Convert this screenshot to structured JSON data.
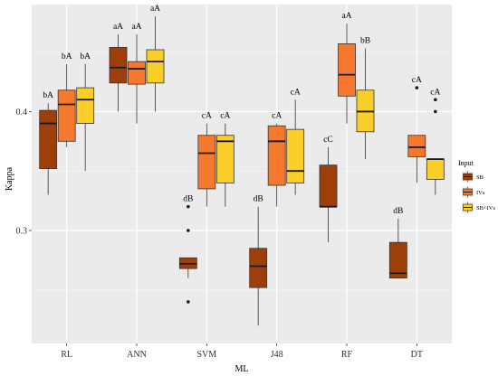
{
  "chart_data": {
    "type": "boxplot",
    "xlabel": "ML",
    "ylabel": "Kappa",
    "ylim": [
      0.205,
      0.49
    ],
    "y_ticks": [
      0.3,
      0.4
    ],
    "y_tick_labels": [
      "0.3",
      "0.4"
    ],
    "grid": true,
    "legend": {
      "title": "Input",
      "position": "right",
      "entries": [
        {
          "name": "SB",
          "color": "#9E3F0A"
        },
        {
          "name": "IVs",
          "color": "#F4792F"
        },
        {
          "name": "SB+IVs",
          "color": "#FBCF2A"
        }
      ]
    },
    "categories": [
      "RL",
      "ANN",
      "SVM",
      "J48",
      "RF",
      "DT"
    ],
    "series": [
      {
        "name": "SB",
        "color": "#9E3F0A",
        "boxes": [
          {
            "min": 0.33,
            "q1": 0.352,
            "median": 0.39,
            "q3": 0.401,
            "max": 0.407,
            "outliers": [],
            "label": "bA"
          },
          {
            "min": 0.4,
            "q1": 0.424,
            "median": 0.437,
            "q3": 0.454,
            "max": 0.465,
            "outliers": [],
            "label": "aA"
          },
          {
            "min": 0.26,
            "q1": 0.268,
            "median": 0.272,
            "q3": 0.277,
            "max": 0.277,
            "outliers": [
              0.32,
              0.3,
              0.24
            ],
            "label": "dB"
          },
          {
            "min": 0.22,
            "q1": 0.252,
            "median": 0.27,
            "q3": 0.285,
            "max": 0.32,
            "outliers": [],
            "label": "dB"
          },
          {
            "min": 0.29,
            "q1": 0.32,
            "median": 0.32,
            "q3": 0.355,
            "max": 0.37,
            "outliers": [],
            "label": "cC"
          },
          {
            "min": 0.26,
            "q1": 0.26,
            "median": 0.264,
            "q3": 0.29,
            "max": 0.31,
            "outliers": [],
            "label": "dB"
          }
        ]
      },
      {
        "name": "IVs",
        "color": "#F4792F",
        "boxes": [
          {
            "min": 0.37,
            "q1": 0.375,
            "median": 0.406,
            "q3": 0.418,
            "max": 0.44,
            "outliers": [],
            "label": "bA"
          },
          {
            "min": 0.39,
            "q1": 0.423,
            "median": 0.436,
            "q3": 0.442,
            "max": 0.465,
            "outliers": [],
            "label": "aA"
          },
          {
            "min": 0.32,
            "q1": 0.335,
            "median": 0.365,
            "q3": 0.38,
            "max": 0.39,
            "outliers": [],
            "label": "cA"
          },
          {
            "min": 0.32,
            "q1": 0.338,
            "median": 0.375,
            "q3": 0.388,
            "max": 0.39,
            "outliers": [],
            "label": "cA"
          },
          {
            "min": 0.39,
            "q1": 0.413,
            "median": 0.431,
            "q3": 0.457,
            "max": 0.474,
            "outliers": [],
            "label": "aA"
          },
          {
            "min": 0.34,
            "q1": 0.362,
            "median": 0.37,
            "q3": 0.38,
            "max": 0.38,
            "outliers": [
              0.42
            ],
            "label": "cA"
          }
        ]
      },
      {
        "name": "SB+IVs",
        "color": "#FBCF2A",
        "boxes": [
          {
            "min": 0.35,
            "q1": 0.39,
            "median": 0.41,
            "q3": 0.42,
            "max": 0.44,
            "outliers": [],
            "label": "bA"
          },
          {
            "min": 0.4,
            "q1": 0.424,
            "median": 0.442,
            "q3": 0.452,
            "max": 0.48,
            "outliers": [],
            "label": "aA"
          },
          {
            "min": 0.32,
            "q1": 0.34,
            "median": 0.375,
            "q3": 0.38,
            "max": 0.39,
            "outliers": [],
            "label": "cA"
          },
          {
            "min": 0.33,
            "q1": 0.34,
            "median": 0.35,
            "q3": 0.385,
            "max": 0.41,
            "outliers": [],
            "label": "cA"
          },
          {
            "min": 0.36,
            "q1": 0.383,
            "median": 0.4,
            "q3": 0.418,
            "max": 0.453,
            "outliers": [],
            "label": "bB"
          },
          {
            "min": 0.33,
            "q1": 0.343,
            "median": 0.36,
            "q3": 0.36,
            "max": 0.36,
            "outliers": [
              0.41,
              0.4
            ],
            "label": "cA"
          }
        ]
      }
    ]
  }
}
